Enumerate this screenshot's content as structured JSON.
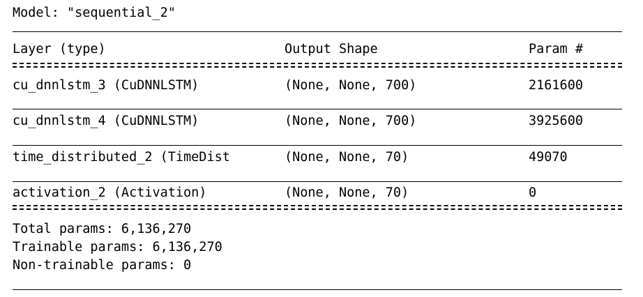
{
  "model_title": "Model: \"sequential_2\"",
  "header": {
    "layer": "Layer (type)",
    "output": "Output Shape",
    "param": "Param #"
  },
  "rows": [
    {
      "layer": "cu_dnnlstm_3 (CuDNNLSTM)",
      "output": "(None, None, 700)",
      "param": "2161600"
    },
    {
      "layer": "cu_dnnlstm_4 (CuDNNLSTM)",
      "output": "(None, None, 700)",
      "param": "3925600"
    },
    {
      "layer": "time_distributed_2 (TimeDist",
      "output": "(None, None, 70)",
      "param": "49070"
    },
    {
      "layer": "activation_2 (Activation)",
      "output": "(None, None, 70)",
      "param": "0"
    }
  ],
  "totals": {
    "total": "Total params: 6,136,270",
    "trainable": "Trainable params: 6,136,270",
    "non_trainable": "Non-trainable params: 0"
  }
}
